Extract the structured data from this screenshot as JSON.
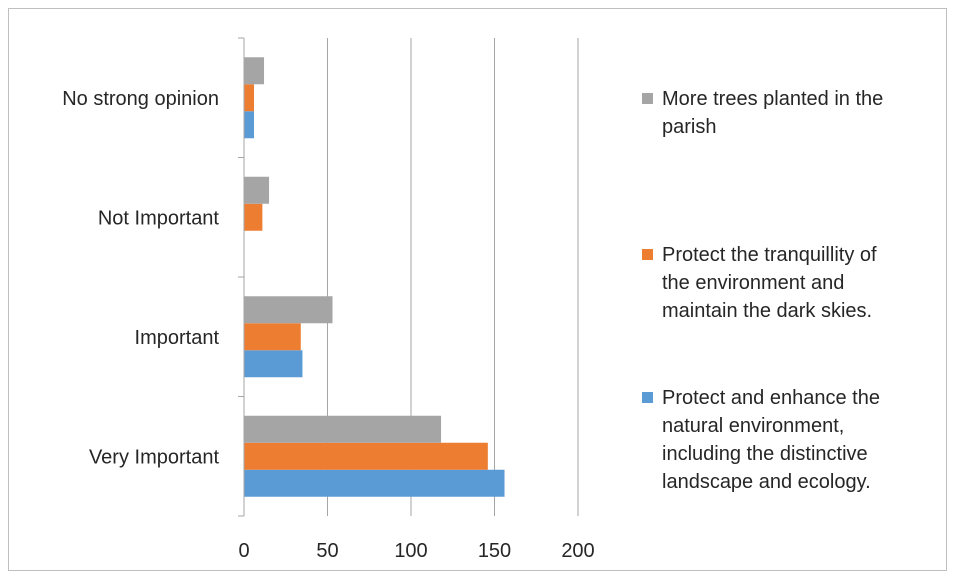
{
  "chart_data": {
    "type": "bar",
    "orientation": "horizontal",
    "categories": [
      "Very Important",
      "Important",
      "Not Important",
      "No strong opinion"
    ],
    "series": [
      {
        "name": "Protect and enhance the natural environment, including the distinctive landscape and ecology.",
        "legend_lines": [
          "Protect and enhance the",
          "natural environment,",
          "including the distinctive",
          "landscape and ecology."
        ],
        "color": "#5b9bd5",
        "values": [
          156,
          35,
          0,
          6
        ]
      },
      {
        "name": "Protect the tranquillity of the environment and maintain the dark skies.",
        "legend_lines": [
          "Protect the tranquillity of",
          "the environment and",
          "maintain the dark skies."
        ],
        "color": "#ed7d31",
        "values": [
          146,
          34,
          11,
          6
        ]
      },
      {
        "name": "More trees planted in the parish",
        "legend_lines": [
          "More trees planted in the",
          "parish"
        ],
        "color": "#a5a5a5",
        "values": [
          118,
          53,
          15,
          12
        ]
      }
    ],
    "xlim": [
      0,
      200
    ],
    "xticks": [
      "0",
      "50",
      "100",
      "150",
      "200"
    ],
    "grid": true,
    "legend_position": "right"
  }
}
